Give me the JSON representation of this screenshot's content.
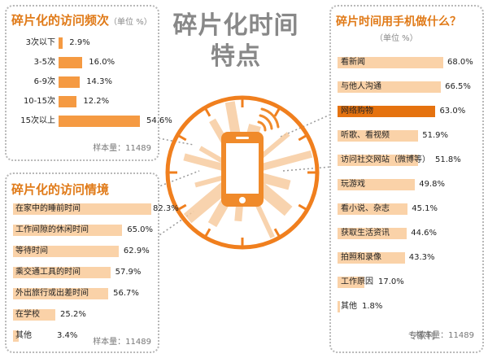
{
  "center": {
    "title_line1": "碎片化时间",
    "title_line2": "特点"
  },
  "watermark": "专家刊",
  "chart_data": [
    {
      "type": "bar",
      "title": "碎片化的访问频次",
      "unit": "（单位 %）",
      "sample": "样本量：11489",
      "categories": [
        "3次以下",
        "3-5次",
        "6-9次",
        "10-15次",
        "15次以上"
      ],
      "values": [
        2.9,
        16.0,
        14.3,
        12.2,
        54.6
      ],
      "value_labels": [
        "2.9%",
        "16.0%",
        "14.3%",
        "12.2%",
        "54.6%"
      ]
    },
    {
      "type": "bar",
      "title": "碎片化的访问情境",
      "sample": "样本量：11489",
      "categories": [
        "在家中的睡前时间",
        "工作间隙的休闲时间",
        "等待时间",
        "乘交通工具的时间",
        "外出旅行或出差时间",
        "在学校",
        "其他"
      ],
      "values": [
        82.3,
        65.0,
        62.9,
        57.9,
        56.7,
        25.2,
        3.4
      ],
      "value_labels": [
        "82.3%",
        "65.0%",
        "62.9%",
        "57.9%",
        "56.7%",
        "25.2%",
        "3.4%"
      ]
    },
    {
      "type": "bar",
      "title": "碎片时间用手机做什么？",
      "unit": "（单位 %）",
      "sample": "样本量：11489",
      "categories": [
        "看新闻",
        "与他人沟通",
        "网络购物",
        "听歌、看视频",
        "访问社交网站（微博等）",
        "玩游戏",
        "看小说、杂志",
        "获取生活资讯",
        "拍照和录像",
        "工作原因",
        "其他"
      ],
      "values": [
        68.0,
        66.5,
        63.0,
        51.9,
        51.8,
        49.8,
        45.1,
        44.6,
        43.3,
        17.0,
        1.8
      ],
      "value_labels": [
        "68.0%",
        "66.5%",
        "63.0%",
        "51.9%",
        "51.8%",
        "49.8%",
        "45.1%",
        "44.6%",
        "43.3%",
        "17.0%",
        "1.8%"
      ],
      "highlight_index": 2
    }
  ],
  "colors": {
    "accent": "#e07a18",
    "bar_light": "#fad2a8",
    "bar_mid": "#f59a42",
    "bar_dark": "#e5720f",
    "ray": "#f7c99a"
  }
}
